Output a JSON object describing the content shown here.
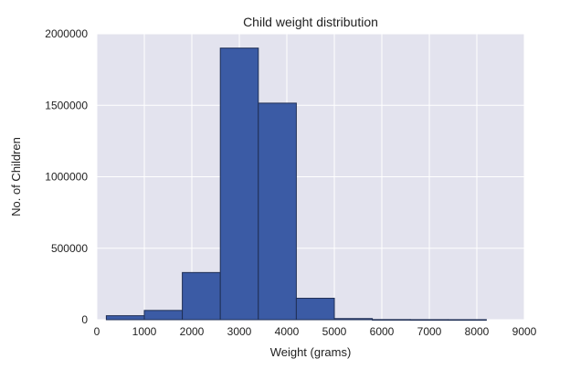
{
  "chart_data": {
    "type": "bar",
    "title": "Child weight distribution",
    "xlabel": "Weight (grams)",
    "ylabel": "No. of Children",
    "xlim": [
      0,
      9000
    ],
    "ylim": [
      0,
      2000000
    ],
    "x_ticks": [
      0,
      1000,
      2000,
      3000,
      4000,
      5000,
      6000,
      7000,
      8000,
      9000
    ],
    "y_ticks": [
      0,
      500000,
      1000000,
      1500000,
      2000000
    ],
    "bins": [
      {
        "start": 200,
        "end": 1000,
        "value": 28000
      },
      {
        "start": 1000,
        "end": 1800,
        "value": 65000
      },
      {
        "start": 1800,
        "end": 2600,
        "value": 330000
      },
      {
        "start": 2600,
        "end": 3400,
        "value": 1900000
      },
      {
        "start": 3400,
        "end": 4200,
        "value": 1515000
      },
      {
        "start": 4200,
        "end": 5000,
        "value": 150000
      },
      {
        "start": 5000,
        "end": 5800,
        "value": 8000
      },
      {
        "start": 5800,
        "end": 6600,
        "value": 1000
      },
      {
        "start": 6600,
        "end": 7400,
        "value": 500
      },
      {
        "start": 7400,
        "end": 8200,
        "value": 300
      }
    ],
    "grid": true,
    "colors": {
      "bar_fill": "#3b5ba5",
      "bar_edge": "#1f2f55",
      "plot_background": "#e3e3ee",
      "grid_line": "#ffffff"
    }
  }
}
